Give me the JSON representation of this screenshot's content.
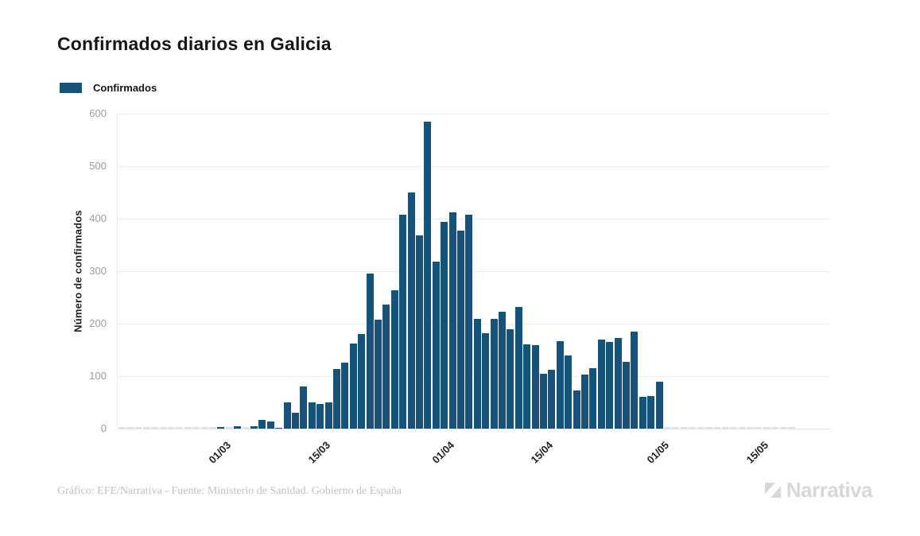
{
  "title": "Confirmados diarios en Galicia",
  "legend": {
    "label": "Confirmados"
  },
  "footer": {
    "credit": "Gráfico: EFE/Narrativa - Fuente: Ministerio de Sanidad. Gobierno de España"
  },
  "logo": {
    "text": "Narrativa"
  },
  "colors": {
    "bar": "#16537b",
    "zero_bar_dash": "#dde4e9",
    "gridline": "#ececec",
    "axis_line": "#e3e3e3",
    "y_tick_text": "#9c9c9c",
    "x_tick_text": "#222222",
    "title_text": "#161616",
    "footer_text": "#c1c1c1",
    "logo_gray": "#d8d8d8"
  },
  "chart_data": {
    "type": "bar",
    "title": "Confirmados diarios en Galicia",
    "series_name": "Confirmados",
    "xlabel": "",
    "ylabel": "Número de confirmados",
    "ylim": [
      0,
      600
    ],
    "y_ticks": [
      0,
      100,
      200,
      300,
      400,
      500,
      600
    ],
    "grid": "horizontal",
    "legend_position": "top-left",
    "x_unit": "day",
    "x_tick_labels": [
      "01/03",
      "15/03",
      "01/04",
      "15/04",
      "01/05",
      "15/05"
    ],
    "x_tick_indices": [
      13,
      25,
      40,
      52,
      66,
      78
    ],
    "values": [
      0,
      0,
      0,
      0,
      0,
      0,
      0,
      0,
      0,
      0,
      0,
      0,
      3,
      0,
      5,
      0,
      5,
      17,
      14,
      2,
      50,
      31,
      81,
      50,
      47,
      50,
      113,
      125,
      162,
      180,
      295,
      207,
      237,
      264,
      407,
      450,
      368,
      585,
      318,
      394,
      412,
      378,
      407,
      209,
      182,
      209,
      222,
      189,
      232,
      161,
      159,
      104,
      112,
      166,
      140,
      73,
      103,
      115,
      169,
      165,
      172,
      127,
      185,
      60,
      62,
      90,
      0,
      0,
      0,
      0,
      0,
      0,
      0,
      0,
      0,
      0,
      0,
      0,
      0,
      0,
      0,
      0
    ],
    "peak_value": 585,
    "n_bars": 82
  }
}
